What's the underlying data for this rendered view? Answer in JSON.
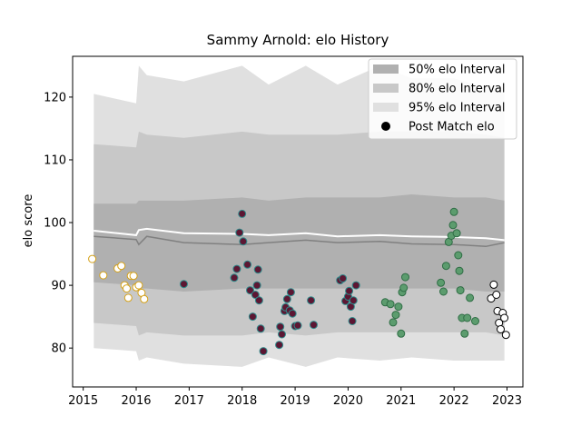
{
  "chart_data": {
    "type": "scatter",
    "title": "Sammy Arnold: elo History",
    "xlabel": "",
    "ylabel": "elo score",
    "xlim": [
      2014.8,
      2023.3
    ],
    "ylim": [
      73.8,
      126.5
    ],
    "x_ticks": [
      2015,
      2016,
      2017,
      2018,
      2019,
      2020,
      2021,
      2022,
      2023
    ],
    "y_ticks": [
      80,
      90,
      100,
      110,
      120
    ],
    "grid": false,
    "legend_position": "top-right",
    "legend": [
      {
        "label": "50% elo Interval",
        "kind": "band",
        "color": "#b0b0b0"
      },
      {
        "label": "80% elo Interval",
        "kind": "band",
        "color": "#c8c8c8"
      },
      {
        "label": "95% elo Interval",
        "kind": "band",
        "color": "#e0e0e0"
      },
      {
        "label": "Post Match elo",
        "kind": "marker",
        "color": "#000000"
      }
    ],
    "bands": {
      "x": [
        2015.2,
        2016.0,
        2016.05,
        2016.2,
        2016.9,
        2018.0,
        2018.5,
        2019.2,
        2019.8,
        2020.6,
        2021.2,
        2022.0,
        2022.6,
        2022.95
      ],
      "p95_upper": [
        120.5,
        119.0,
        125.0,
        123.5,
        122.5,
        125.0,
        122.0,
        125.0,
        122.0,
        125.0,
        123.0,
        123.0,
        121.5,
        121.5
      ],
      "p95_lower": [
        80.0,
        79.5,
        78.0,
        78.5,
        77.5,
        77.0,
        78.5,
        77.0,
        78.5,
        78.0,
        78.5,
        78.0,
        78.0,
        78.0
      ],
      "p80_upper": [
        112.5,
        112.0,
        114.5,
        114.0,
        113.5,
        114.5,
        114.0,
        114.0,
        114.0,
        114.5,
        114.5,
        114.5,
        114.0,
        113.5
      ],
      "p80_lower": [
        84.0,
        83.5,
        82.0,
        82.5,
        82.0,
        82.0,
        82.5,
        82.0,
        82.5,
        82.5,
        82.5,
        82.5,
        82.5,
        82.0
      ],
      "p50_upper": [
        103.0,
        103.0,
        103.5,
        103.5,
        103.5,
        104.0,
        103.5,
        104.0,
        104.0,
        104.0,
        104.5,
        104.0,
        104.0,
        103.5
      ],
      "p50_lower": [
        90.5,
        90.0,
        89.5,
        89.5,
        89.0,
        89.5,
        89.5,
        89.5,
        89.5,
        89.5,
        89.5,
        89.5,
        89.0,
        89.0
      ],
      "mean": [
        98.7,
        98.0,
        98.8,
        99.0,
        98.3,
        98.2,
        98.0,
        98.3,
        97.8,
        98.0,
        97.8,
        97.7,
        97.5,
        97.2
      ],
      "median": [
        97.8,
        97.3,
        96.5,
        97.8,
        96.8,
        96.5,
        96.8,
        97.2,
        96.8,
        97.0,
        96.6,
        96.5,
        96.2,
        96.8
      ]
    },
    "series": [
      {
        "color": "#ffffff",
        "edge": "#d4a017",
        "x": [
          2015.17,
          2015.38,
          2015.65,
          2015.72,
          2015.78,
          2015.82,
          2015.85,
          2015.9,
          2015.95,
          2016.0,
          2016.05,
          2016.1,
          2016.15
        ],
        "y": [
          94.2,
          91.6,
          92.7,
          93.1,
          90.0,
          89.5,
          88.0,
          91.5,
          91.5,
          89.7,
          90.0,
          88.8,
          87.8
        ]
      },
      {
        "color": "#5c1733",
        "edge": "#2e8b8b",
        "x": [
          2016.9,
          2017.85,
          2017.9,
          2017.95,
          2018.0,
          2018.02,
          2018.1,
          2018.15,
          2018.2,
          2018.25,
          2018.28,
          2018.3,
          2018.32,
          2018.35,
          2018.4,
          2018.7,
          2018.72,
          2018.75,
          2018.8,
          2018.82,
          2018.85,
          2018.9,
          2018.92,
          2018.95,
          2019.0,
          2019.05,
          2019.3,
          2019.35
        ],
        "y": [
          90.2,
          91.2,
          92.6,
          98.4,
          101.4,
          97.0,
          93.3,
          89.2,
          85.0,
          88.5,
          90.0,
          92.5,
          87.6,
          83.1,
          79.5,
          80.5,
          83.4,
          82.2,
          85.9,
          86.5,
          87.8,
          86.0,
          88.9,
          85.5,
          83.5,
          83.6,
          87.6,
          83.7
        ]
      },
      {
        "color": "#5c1733",
        "edge": "#2e8b8b",
        "x": [
          2019.85,
          2019.9,
          2019.95,
          2020.0,
          2020.02,
          2020.05,
          2020.08,
          2020.1,
          2020.15
        ],
        "y": [
          90.8,
          91.1,
          87.5,
          88.2,
          89.1,
          86.6,
          84.3,
          87.6,
          90.0
        ]
      },
      {
        "color": "#5c9c6e",
        "edge": "#2f6d45",
        "x": [
          2020.7,
          2020.8,
          2020.85,
          2020.9,
          2020.95,
          2021.0,
          2021.02,
          2021.05,
          2021.08,
          2021.75,
          2021.8,
          2021.85,
          2021.9,
          2021.95,
          2021.98,
          2022.0,
          2022.05,
          2022.08,
          2022.1,
          2022.12,
          2022.15,
          2022.2,
          2022.25,
          2022.3,
          2022.4
        ],
        "y": [
          87.3,
          87.0,
          84.1,
          85.3,
          86.6,
          82.3,
          88.9,
          89.6,
          91.3,
          90.4,
          89.0,
          93.1,
          96.9,
          97.9,
          99.6,
          101.7,
          98.3,
          94.8,
          92.3,
          89.2,
          84.8,
          82.3,
          84.8,
          88.0,
          84.3
        ]
      },
      {
        "color": "#ffffff",
        "edge": "#000000",
        "x": [
          2022.7,
          2022.75,
          2022.8,
          2022.82,
          2022.85,
          2022.88,
          2022.92,
          2022.95,
          2022.98
        ],
        "y": [
          87.9,
          90.1,
          88.5,
          85.9,
          84.0,
          83.0,
          85.6,
          84.8,
          82.1
        ]
      }
    ]
  }
}
